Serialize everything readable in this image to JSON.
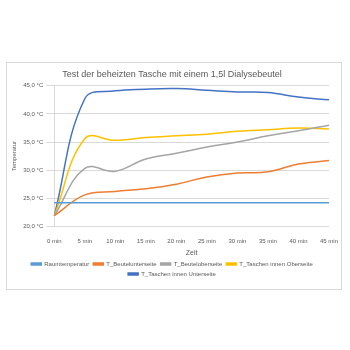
{
  "chart_data": {
    "type": "line",
    "title": "Test der beheizten Tasche mit einem 1,5l Dialysebeutel",
    "x_label": "Zeit",
    "y_label": "Temperatur",
    "categories": [
      "0 min",
      "5 min",
      "10 min",
      "15 min",
      "20 min",
      "25 min",
      "30 min",
      "35 min",
      "40 min",
      "45 min"
    ],
    "series": [
      {
        "name": "Raumtemperatur",
        "color": "#5b9bd5",
        "values": [
          24.2,
          24.2,
          24.2,
          24.2,
          24.2,
          24.2,
          24.2,
          24.2,
          24.2,
          24.2
        ]
      },
      {
        "name": "T_Beutelunterseite",
        "color": "#ed7d31",
        "values": [
          21.9,
          25.6,
          26.2,
          26.7,
          27.5,
          28.8,
          29.5,
          29.7,
          31.1,
          31.7
        ]
      },
      {
        "name": "T_Beuteloberseite",
        "color": "#a5a5a5",
        "values": [
          21.9,
          30.3,
          29.8,
          32.0,
          33.0,
          34.1,
          35.0,
          36.1,
          37.0,
          38.0
        ]
      },
      {
        "name": "T_Taschen innen Oberseite",
        "color": "#ffc000",
        "values": [
          21.9,
          35.6,
          35.3,
          35.8,
          36.1,
          36.4,
          36.9,
          37.2,
          37.5,
          37.3
        ]
      },
      {
        "name": "T_Taschen innen Unterseite",
        "color": "#4472c4",
        "values": [
          21.9,
          42.7,
          44.1,
          44.4,
          44.5,
          44.2,
          43.9,
          43.8,
          43.0,
          42.5
        ]
      }
    ],
    "ylim": [
      20,
      45
    ],
    "yticks": [
      {
        "value": 20,
        "label": "20,0 °C"
      },
      {
        "value": 25,
        "label": "25,0 °C"
      },
      {
        "value": 30,
        "label": "30,0 °C"
      },
      {
        "value": 35,
        "label": "35,0 °C"
      },
      {
        "value": 40,
        "label": "40,0 °C"
      },
      {
        "value": 45,
        "label": "45,0 °C"
      }
    ],
    "grid": true,
    "legend": "bottom"
  }
}
